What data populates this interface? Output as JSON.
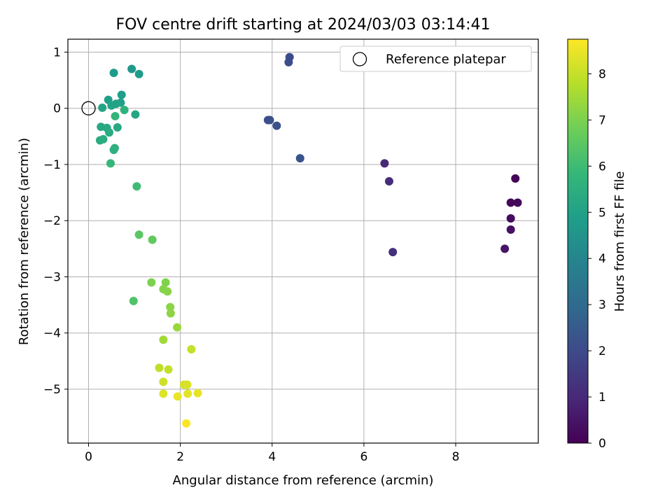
{
  "chart_data": {
    "type": "scatter",
    "title": "FOV centre drift starting at 2024/03/03 03:14:41",
    "xlabel": "Angular distance from reference (arcmin)",
    "ylabel": "Rotation from reference (arcmin)",
    "xlim": [
      -0.45,
      9.8
    ],
    "ylim": [
      -5.96,
      1.23
    ],
    "x_ticks": [
      0,
      2,
      4,
      6,
      8
    ],
    "y_ticks": [
      1,
      0,
      -1,
      -2,
      -3,
      -4,
      -5
    ],
    "grid": true,
    "legend": {
      "placement": "top-right",
      "entries": [
        "Reference platepar"
      ]
    },
    "reference_point": {
      "x": 0,
      "y": 0
    },
    "colorbar": {
      "label": "Hours from first FF file",
      "range": [
        0,
        8.75
      ],
      "ticks": [
        0,
        1,
        2,
        3,
        4,
        5,
        6,
        7,
        8
      ],
      "colormap": "viridis"
    },
    "points": [
      {
        "x": 9.3,
        "y": -1.25,
        "h": 0.05
      },
      {
        "x": 9.2,
        "y": -1.68,
        "h": 0.15
      },
      {
        "x": 9.35,
        "y": -1.68,
        "h": 0.2
      },
      {
        "x": 9.2,
        "y": -1.96,
        "h": 0.3
      },
      {
        "x": 9.2,
        "y": -2.16,
        "h": 0.4
      },
      {
        "x": 9.07,
        "y": -2.5,
        "h": 0.5
      },
      {
        "x": 6.45,
        "y": -0.98,
        "h": 1.0
      },
      {
        "x": 6.55,
        "y": -1.3,
        "h": 1.1
      },
      {
        "x": 6.63,
        "y": -2.56,
        "h": 1.2
      },
      {
        "x": 4.38,
        "y": 0.91,
        "h": 2.0
      },
      {
        "x": 4.36,
        "y": 0.82,
        "h": 2.05
      },
      {
        "x": 3.91,
        "y": -0.21,
        "h": 2.1
      },
      {
        "x": 3.95,
        "y": -0.21,
        "h": 2.15
      },
      {
        "x": 4.1,
        "y": -0.31,
        "h": 2.2
      },
      {
        "x": 4.61,
        "y": -0.89,
        "h": 2.3
      },
      {
        "x": 0.94,
        "y": 0.7,
        "h": 4.7
      },
      {
        "x": 1.1,
        "y": 0.61,
        "h": 4.75
      },
      {
        "x": 0.55,
        "y": 0.63,
        "h": 4.8
      },
      {
        "x": 0.72,
        "y": 0.24,
        "h": 4.85
      },
      {
        "x": 0.43,
        "y": 0.15,
        "h": 4.9
      },
      {
        "x": 0.7,
        "y": 0.1,
        "h": 4.95
      },
      {
        "x": 0.6,
        "y": 0.08,
        "h": 5.0
      },
      {
        "x": 0.5,
        "y": 0.05,
        "h": 5.05
      },
      {
        "x": 0.3,
        "y": 0.01,
        "h": 5.1
      },
      {
        "x": 1.02,
        "y": -0.11,
        "h": 5.15
      },
      {
        "x": 0.27,
        "y": -0.33,
        "h": 5.2
      },
      {
        "x": 0.63,
        "y": -0.34,
        "h": 5.25
      },
      {
        "x": 0.4,
        "y": -0.35,
        "h": 5.3
      },
      {
        "x": 0.45,
        "y": -0.43,
        "h": 5.35
      },
      {
        "x": 0.25,
        "y": -0.57,
        "h": 5.4
      },
      {
        "x": 0.32,
        "y": -0.55,
        "h": 5.45
      },
      {
        "x": 0.57,
        "y": -0.71,
        "h": 5.5
      },
      {
        "x": 0.55,
        "y": -0.74,
        "h": 5.55
      },
      {
        "x": 0.78,
        "y": -0.03,
        "h": 5.65
      },
      {
        "x": 0.58,
        "y": -0.14,
        "h": 5.75
      },
      {
        "x": 0.48,
        "y": -0.98,
        "h": 5.85
      },
      {
        "x": 1.05,
        "y": -1.39,
        "h": 6.0
      },
      {
        "x": 0.98,
        "y": -3.43,
        "h": 6.3
      },
      {
        "x": 1.1,
        "y": -2.25,
        "h": 6.5
      },
      {
        "x": 1.39,
        "y": -2.34,
        "h": 6.6
      },
      {
        "x": 1.37,
        "y": -3.1,
        "h": 7.0
      },
      {
        "x": 1.68,
        "y": -3.1,
        "h": 7.05
      },
      {
        "x": 1.63,
        "y": -3.22,
        "h": 7.1
      },
      {
        "x": 1.72,
        "y": -3.26,
        "h": 7.15
      },
      {
        "x": 1.78,
        "y": -3.54,
        "h": 7.2
      },
      {
        "x": 1.79,
        "y": -3.65,
        "h": 7.25
      },
      {
        "x": 1.93,
        "y": -3.9,
        "h": 7.4
      },
      {
        "x": 1.63,
        "y": -4.12,
        "h": 7.5
      },
      {
        "x": 2.24,
        "y": -4.29,
        "h": 8.0
      },
      {
        "x": 1.54,
        "y": -4.62,
        "h": 7.9
      },
      {
        "x": 1.74,
        "y": -4.65,
        "h": 7.95
      },
      {
        "x": 1.63,
        "y": -4.87,
        "h": 8.1
      },
      {
        "x": 2.08,
        "y": -4.92,
        "h": 8.2
      },
      {
        "x": 2.15,
        "y": -4.92,
        "h": 8.25
      },
      {
        "x": 1.63,
        "y": -5.08,
        "h": 8.3
      },
      {
        "x": 2.16,
        "y": -5.08,
        "h": 8.4
      },
      {
        "x": 2.38,
        "y": -5.07,
        "h": 8.45
      },
      {
        "x": 1.94,
        "y": -5.13,
        "h": 8.5
      },
      {
        "x": 2.13,
        "y": -5.61,
        "h": 8.7
      }
    ]
  }
}
